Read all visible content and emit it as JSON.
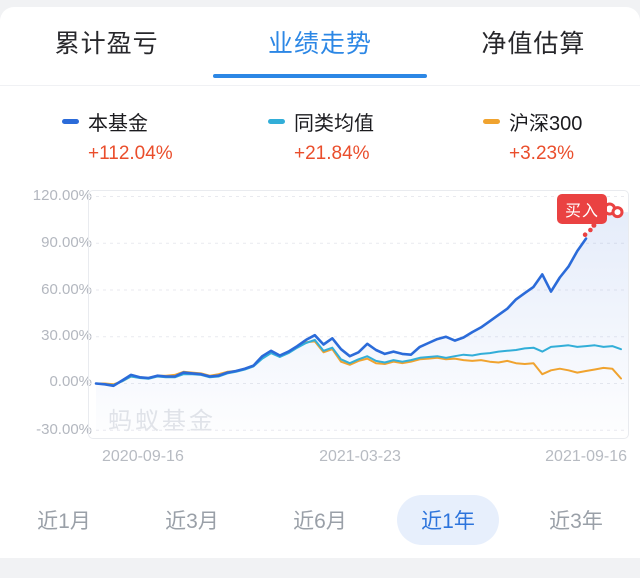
{
  "tabs": {
    "items": [
      {
        "label": "累计盈亏",
        "active": false
      },
      {
        "label": "业绩走势",
        "active": true
      },
      {
        "label": "净值估算",
        "active": false
      }
    ]
  },
  "legend": {
    "value_color": "#ea4e2c",
    "items": [
      {
        "name": "本基金",
        "value": "+112.04%",
        "color": "#2b6bd9"
      },
      {
        "name": "同类均值",
        "value": "+21.84%",
        "color": "#32aed8"
      },
      {
        "name": "沪深300",
        "value": "+3.23%",
        "color": "#f0a32f"
      }
    ]
  },
  "watermark": "蚂蚁基金",
  "buy_badge": {
    "label": "买入",
    "color": "#ea4242"
  },
  "ranges": {
    "items": [
      {
        "label": "近1月",
        "active": false
      },
      {
        "label": "近3月",
        "active": false
      },
      {
        "label": "近6月",
        "active": false
      },
      {
        "label": "近1年",
        "active": true
      },
      {
        "label": "近3年",
        "active": false
      }
    ]
  },
  "chart_data": {
    "type": "line",
    "title": "业绩走势（近1年）",
    "grid": "horizontal-dashed",
    "grid_color": "#e9eaef",
    "ylim": [
      -30,
      120
    ],
    "y_ticks_pct": [
      120,
      90,
      60,
      30,
      0,
      -30
    ],
    "y_tick_labels": [
      "120.00%",
      "90.00%",
      "60.00%",
      "30.00%",
      "0.00%",
      "-30.00%"
    ],
    "x_tick_labels": [
      "2020-09-16",
      "2021-03-23",
      "2021-09-16"
    ],
    "x_points_total": 61,
    "series": [
      {
        "name": "本基金",
        "final_value": "+112.04%",
        "color": "#2b6bd9",
        "width": 2.6,
        "area_fill": true,
        "values": [
          0,
          -0.5,
          -1.5,
          2,
          5.5,
          4,
          3.5,
          5,
          4.5,
          4.5,
          7,
          6.5,
          6,
          4.5,
          5,
          7,
          8,
          9.5,
          11.5,
          17.5,
          21,
          18,
          20.5,
          24,
          28,
          31,
          25,
          29,
          22,
          17.5,
          20,
          25.5,
          21.5,
          19,
          20.5,
          19,
          18.5,
          23.5,
          26,
          28.5,
          30,
          27.5,
          29.5,
          33,
          36,
          40,
          44,
          48,
          54,
          58,
          62,
          70,
          59,
          68,
          75,
          85,
          93
        ]
      },
      {
        "name": "同类均值",
        "final_value": "+21.84%",
        "color": "#32aed8",
        "width": 2,
        "area_fill": false,
        "values": [
          0,
          -0.5,
          -1,
          1.5,
          4.5,
          3.5,
          3,
          4.5,
          4,
          4,
          6,
          6,
          5.5,
          4,
          4.5,
          6.5,
          7.5,
          9,
          11,
          16,
          19.5,
          17,
          19.5,
          23,
          26,
          28,
          21,
          23,
          15.5,
          13,
          15.5,
          17.5,
          14.5,
          13.5,
          15,
          14,
          15,
          16.5,
          17,
          17.5,
          16.5,
          17.5,
          18.5,
          18,
          19,
          19.5,
          20.5,
          21,
          21.5,
          22.5,
          23,
          20.5,
          23.5,
          24,
          24.5,
          23.5,
          24,
          24.5,
          23.5,
          24,
          22
        ]
      },
      {
        "name": "沪深300",
        "final_value": "+3.23%",
        "color": "#f0a32f",
        "width": 2,
        "area_fill": false,
        "values": [
          0,
          0,
          -0.5,
          1.5,
          4.5,
          4,
          3.5,
          5,
          5,
          5.5,
          7.5,
          7,
          6.5,
          5,
          6,
          7.5,
          8,
          9.5,
          11.5,
          16.5,
          20,
          17.5,
          20,
          23.5,
          26.5,
          27,
          20,
          22,
          14,
          12,
          14.5,
          16,
          13,
          12.5,
          14,
          13,
          14,
          15.5,
          16,
          16.5,
          15.5,
          16,
          15,
          14.5,
          15,
          14,
          13.5,
          14.5,
          13,
          12.5,
          13,
          6,
          8.5,
          9.5,
          8.5,
          7,
          8,
          9,
          10,
          9.5,
          3.2
        ]
      }
    ],
    "buy_trail": {
      "color": "#ea4242",
      "points": [
        {
          "i": 55.9,
          "pct": 95.5,
          "r": 2.3
        },
        {
          "i": 56.5,
          "pct": 98.5,
          "r": 2.3
        },
        {
          "i": 56.9,
          "pct": 101.5,
          "r": 2.5
        },
        {
          "i": 57.4,
          "pct": 104.5,
          "r": 2.7
        },
        {
          "i": 57.9,
          "pct": 107.5,
          "r": 3
        },
        {
          "i": 58.7,
          "pct": 112,
          "r": 5
        },
        {
          "i": 59.6,
          "pct": 110,
          "r": 4.5
        }
      ]
    }
  }
}
